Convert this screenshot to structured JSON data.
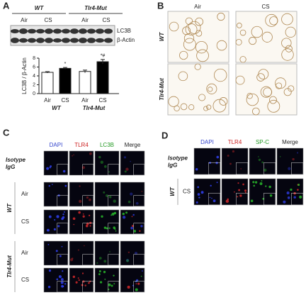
{
  "chart_data": {
    "type": "bar",
    "ylabel": "LC3B / β-Actin",
    "categories": [
      "Air",
      "CS",
      "Air",
      "CS"
    ],
    "group_labels": [
      "WT",
      "Tlr4-Mut"
    ],
    "values": [
      4.8,
      5.7,
      5.0,
      7.2
    ],
    "errors": [
      0.15,
      0.2,
      0.3,
      0.5
    ],
    "colors": [
      "#ffffff",
      "#000000",
      "#ffffff",
      "#000000"
    ],
    "annotations": [
      {
        "index": 1,
        "text": "*"
      },
      {
        "index": 3,
        "text": "*#"
      }
    ],
    "ylim": [
      0,
      8
    ],
    "yticks": [
      0,
      2,
      4,
      6,
      8
    ]
  },
  "panels": {
    "a": {
      "letter": "A",
      "groups": [
        "WT",
        "Tlr4-Mut"
      ],
      "lanes": [
        "Air",
        "CS",
        "Air",
        "CS"
      ],
      "bands": [
        "LC3B",
        "β-Actin"
      ]
    },
    "b": {
      "letter": "B",
      "columns": [
        "Air",
        "CS"
      ],
      "rows": [
        "WT",
        "Tlr4-Mut"
      ]
    },
    "c": {
      "letter": "C",
      "columns": [
        "DAPI",
        "TLR4",
        "LC3B",
        "Merge"
      ],
      "header_colors": [
        "#3344cc",
        "#cc2222",
        "#229922",
        "#222222"
      ],
      "isotype": [
        "Isotype",
        "IgG"
      ],
      "groups": [
        {
          "name": "WT",
          "conditions": [
            "Air",
            "CS"
          ]
        },
        {
          "name": "Tlr4-Mut",
          "conditions": [
            "Air",
            "CS"
          ]
        }
      ]
    },
    "d": {
      "letter": "D",
      "columns": [
        "DAPI",
        "TLR4",
        "SP-C",
        "Merge"
      ],
      "header_colors": [
        "#3344cc",
        "#cc2222",
        "#229922",
        "#222222"
      ],
      "isotype": [
        "Isotype",
        "IgG"
      ],
      "groups": [
        {
          "name": "WT",
          "conditions": [
            "CS"
          ]
        }
      ]
    }
  }
}
